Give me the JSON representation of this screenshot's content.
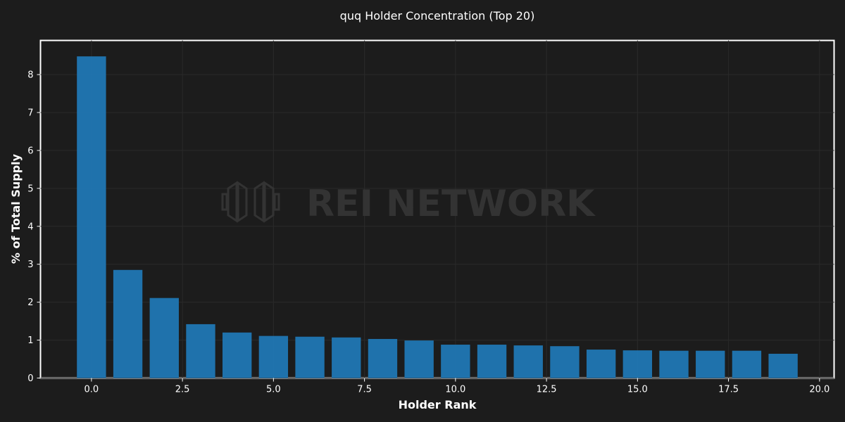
{
  "chart_data": {
    "type": "bar",
    "title": "quq Holder Concentration (Top 20)",
    "xlabel": "Holder Rank",
    "ylabel": "% of Total Supply",
    "x": [
      0,
      1,
      2,
      3,
      4,
      5,
      6,
      7,
      8,
      9,
      10,
      11,
      12,
      13,
      14,
      15,
      16,
      17,
      18,
      19
    ],
    "values": [
      8.48,
      2.85,
      2.11,
      1.42,
      1.2,
      1.11,
      1.09,
      1.07,
      1.03,
      0.99,
      0.88,
      0.88,
      0.86,
      0.84,
      0.75,
      0.73,
      0.72,
      0.72,
      0.72,
      0.64
    ],
    "xlim": [
      -1.4,
      20.4
    ],
    "ylim": [
      0,
      8.9
    ],
    "x_ticks": [
      "0.0",
      "2.5",
      "5.0",
      "7.5",
      "10.0",
      "12.5",
      "15.0",
      "17.5",
      "20.0"
    ],
    "y_ticks": [
      "0",
      "1",
      "2",
      "3",
      "4",
      "5",
      "6",
      "7",
      "8"
    ],
    "grid": true,
    "bar_color": "#2077b4",
    "background_color": "#1c1c1c",
    "watermark": "REI NETWORK"
  }
}
